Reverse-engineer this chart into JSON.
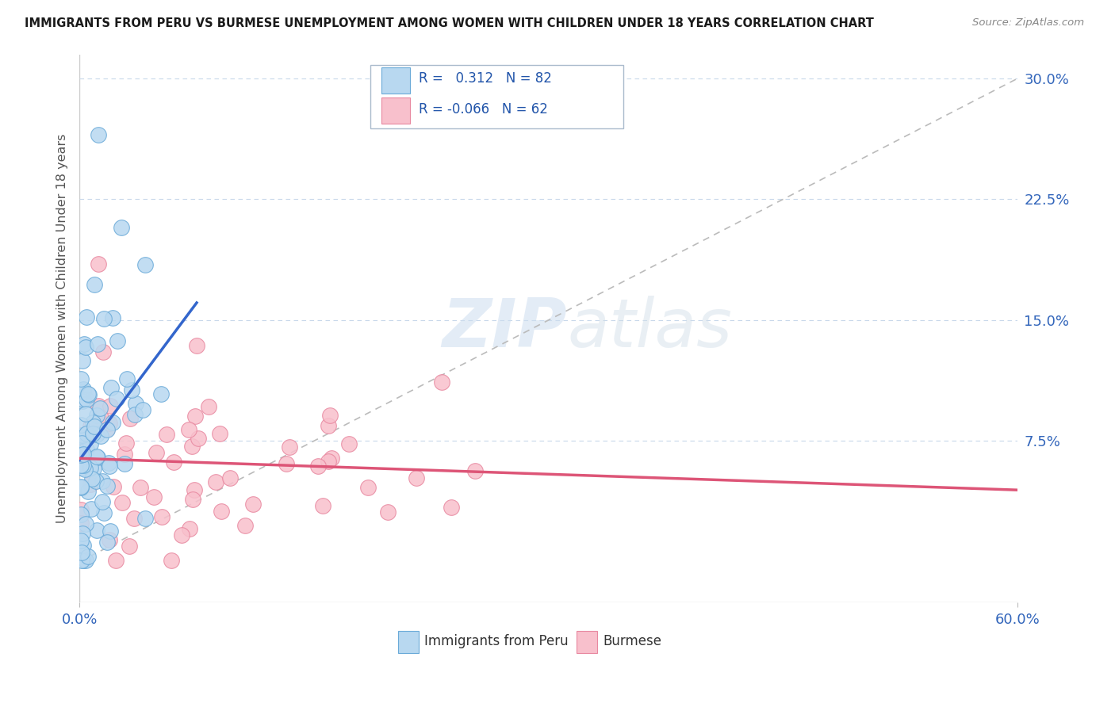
{
  "title": "IMMIGRANTS FROM PERU VS BURMESE UNEMPLOYMENT AMONG WOMEN WITH CHILDREN UNDER 18 YEARS CORRELATION CHART",
  "source": "Source: ZipAtlas.com",
  "ylabel": "Unemployment Among Women with Children Under 18 years",
  "yticks": [
    "7.5%",
    "15.0%",
    "22.5%",
    "30.0%"
  ],
  "ytick_vals": [
    0.075,
    0.15,
    0.225,
    0.3
  ],
  "xmin": 0.0,
  "xmax": 0.6,
  "ymin": -0.025,
  "ymax": 0.315,
  "legend1_label": "Immigrants from Peru",
  "legend2_label": "Burmese",
  "r1": 0.312,
  "n1": 82,
  "r2": -0.066,
  "n2": 62,
  "color_peru_fill": "#b8d8f0",
  "color_peru_edge": "#6aaad8",
  "color_burmese_fill": "#f8c0cc",
  "color_burmese_edge": "#e888a0",
  "color_peru_line": "#3366cc",
  "color_burmese_line": "#dd5577",
  "watermark_zip": "ZIP",
  "watermark_atlas": "atlas",
  "background": "#ffffff",
  "grid_color": "#c8d8ea",
  "diag_color": "#bbbbbb"
}
